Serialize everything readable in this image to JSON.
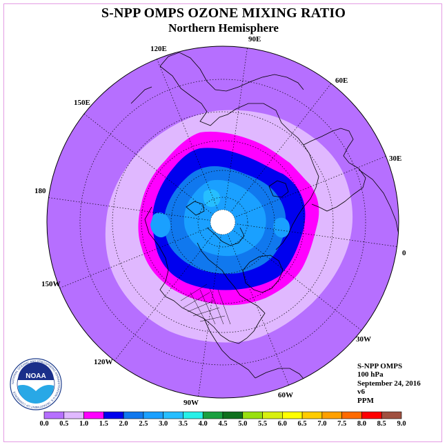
{
  "title": "S-NPP OMPS OZONE MIXING RATIO",
  "subtitle": "Northern Hemisphere",
  "longitude_labels": [
    "90E",
    "60E",
    "30E",
    "0",
    "30W",
    "60W",
    "90W",
    "120W",
    "150W",
    "180",
    "150E",
    "120E"
  ],
  "info": {
    "instrument": "S-NPP OMPS",
    "level": "100 hPa",
    "date": "September 24, 2016",
    "version": "v6",
    "units": "PPM"
  },
  "logo": {
    "center_text": "NOAA",
    "ring_text": "NATIONAL OCEANIC AND ATMOSPHERIC ADMINISTRATION U.S. DEPARTMENT OF COMMERCE"
  },
  "colorbar": {
    "ticks": [
      "0.0",
      "0.5",
      "1.0",
      "1.5",
      "2.0",
      "2.5",
      "3.0",
      "3.5",
      "4.0",
      "4.5",
      "5.0",
      "5.5",
      "6.0",
      "6.5",
      "7.0",
      "7.5",
      "8.0",
      "8.5",
      "9.0"
    ],
    "colors": [
      "#b66fff",
      "#e0b8ff",
      "#ff00ff",
      "#0000ee",
      "#1078ee",
      "#1aa0ff",
      "#26beff",
      "#27f0e8",
      "#1aa040",
      "#10701e",
      "#98e010",
      "#d8f010",
      "#ffff00",
      "#ffcc00",
      "#ffa000",
      "#ff6a00",
      "#ff0000",
      "#a05040"
    ]
  },
  "map_colors": {
    "background": "#b66fff",
    "band_0_5_1_0": "#e0b8ff",
    "band_1_0_1_5": "#ff00ff",
    "band_1_5_2_0": "#0000ee",
    "band_2_0_2_5": "#1078ee",
    "band_2_5_3_0": "#1aa0ff",
    "pole_cap": "#ffffff"
  }
}
